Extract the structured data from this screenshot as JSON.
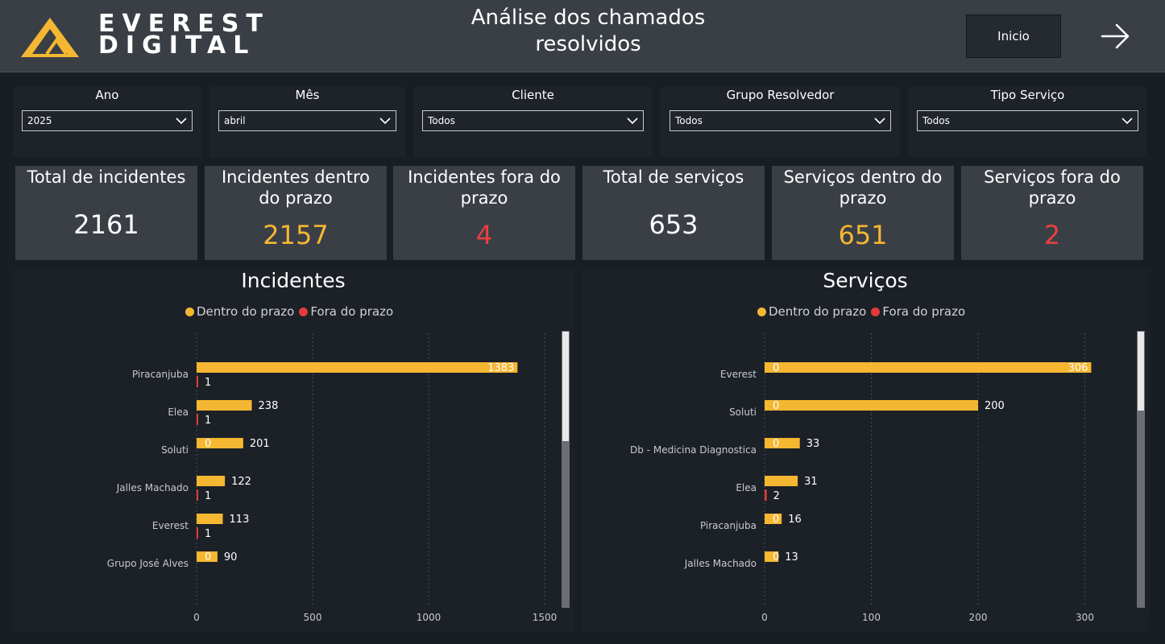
{
  "header": {
    "logo": {
      "word1": "EVEREST",
      "word2": "DIGITAL",
      "brand_color": "#f5b731"
    },
    "title_line1": "Análise dos chamados",
    "title_line2": "resolvidos",
    "inicio_label": "Inicio",
    "next_icon": "arrow-right-icon"
  },
  "filters": [
    {
      "label": "Ano",
      "value": "2025"
    },
    {
      "label": "Mês",
      "value": "abril"
    },
    {
      "label": "Cliente",
      "value": "Todos"
    },
    {
      "label": "Grupo Resolvedor",
      "value": "Todos"
    },
    {
      "label": "Tipo Serviço",
      "value": "Todos"
    }
  ],
  "kpis": [
    {
      "label": "Total de incidentes",
      "value": "2161",
      "color": "#ffffff"
    },
    {
      "label": "Incidentes dentro do prazo",
      "value": "2157",
      "color": "#f5b731"
    },
    {
      "label": "Incidentes fora do prazo",
      "value": "4",
      "color": "#e84040"
    },
    {
      "label": "Total de serviços",
      "value": "653",
      "color": "#ffffff"
    },
    {
      "label": "Serviços dentro do prazo",
      "value": "651",
      "color": "#f5b731"
    },
    {
      "label": "Serviços fora do prazo",
      "value": "2",
      "color": "#e84040"
    }
  ],
  "colors": {
    "dentro": "#f5b731",
    "fora": "#e03c3c"
  },
  "chart_data": [
    {
      "type": "bar",
      "orientation": "horizontal",
      "title": "Incidentes",
      "categories": [
        "Piracanjuba",
        "Elea",
        "Soluti",
        "Jalles Machado",
        "Everest",
        "Grupo José Alves"
      ],
      "series": [
        {
          "name": "Dentro do prazo",
          "values": [
            1383,
            238,
            201,
            122,
            113,
            90
          ]
        },
        {
          "name": "Fora do prazo",
          "values": [
            1,
            1,
            0,
            1,
            1,
            0
          ]
        }
      ],
      "xlim": [
        0,
        1500
      ],
      "xticks": [
        0,
        500,
        1000,
        1500
      ],
      "grid": true,
      "legend": "top-center",
      "scroll_fraction_visible": 0.4
    },
    {
      "type": "bar",
      "orientation": "horizontal",
      "title": "Serviços",
      "categories": [
        "Everest",
        "Soluti",
        "Db - Medicina Diagnostica",
        "Elea",
        "Piracanjuba",
        "Jalles Machado"
      ],
      "series": [
        {
          "name": "Dentro do prazo",
          "values": [
            306,
            200,
            33,
            31,
            16,
            13
          ]
        },
        {
          "name": "Fora do prazo",
          "values": [
            0,
            0,
            0,
            2,
            0,
            0
          ]
        }
      ],
      "xlim": [
        0,
        320
      ],
      "xticks": [
        0,
        100,
        200,
        300
      ],
      "grid": true,
      "legend": "top-center",
      "scroll_fraction_visible": 0.29
    }
  ]
}
